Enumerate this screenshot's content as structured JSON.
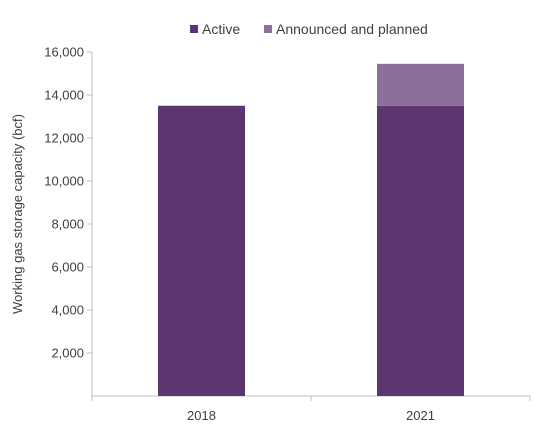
{
  "chart_data": {
    "type": "bar",
    "stacked": true,
    "categories": [
      "2018",
      "2021"
    ],
    "series": [
      {
        "name": "Active",
        "values": [
          13500,
          13500
        ],
        "color": "#5b3670"
      },
      {
        "name": "Announced and planned",
        "values": [
          0,
          1950
        ],
        "color": "#8c6f9b"
      }
    ],
    "ylabel": "Working gas storage capacity (bcf)",
    "ylim": [
      0,
      16000
    ],
    "yticks": [
      "2,000",
      "4,000",
      "6,000",
      "8,000",
      "10,000",
      "12,000",
      "14,000",
      "16,000"
    ],
    "ytick_values": [
      2000,
      4000,
      6000,
      8000,
      10000,
      12000,
      14000,
      16000
    ],
    "grid": false,
    "legend_position": "top-center"
  }
}
